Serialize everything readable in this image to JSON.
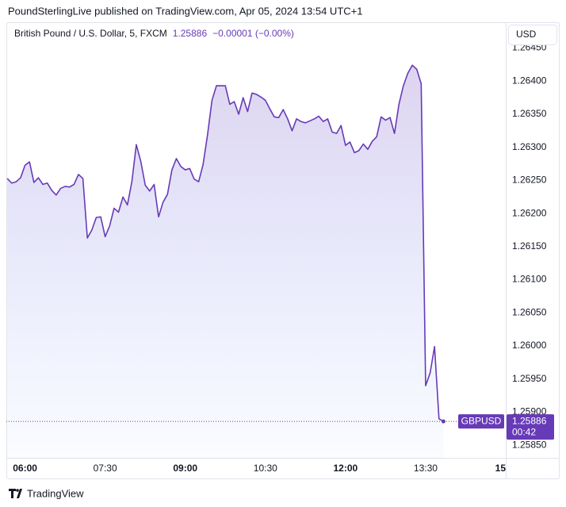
{
  "header": {
    "text": "PoundSterlingLive published on TradingView.com, Apr 05, 2024 13:54 UTC+1"
  },
  "footer": {
    "brand": "TradingView"
  },
  "chart_data": {
    "type": "area",
    "title": "British Pound / U.S. Dollar, 5, FXCM",
    "change": "−0.00001 (−0.00%)",
    "symbol": "GBPUSD",
    "currency": "USD",
    "countdown": "00:42",
    "grid": false,
    "xlim": [
      "05:39",
      "15:00"
    ],
    "ylim": [
      1.25831,
      1.26489
    ],
    "xticks": [
      "06:00",
      "07:30",
      "09:00",
      "10:30",
      "12:00",
      "13:30",
      {
        "value": "15:00",
        "label": "15"
      }
    ],
    "yticks": [
      {
        "value": 1.2645,
        "label": "1.26450"
      },
      {
        "value": 1.264,
        "label": "1.26400"
      },
      {
        "value": 1.2635,
        "label": "1.26350"
      },
      {
        "value": 1.263,
        "label": "1.26300"
      },
      {
        "value": 1.2625,
        "label": "1.26250"
      },
      {
        "value": 1.262,
        "label": "1.26200"
      },
      {
        "value": 1.2615,
        "label": "1.26150"
      },
      {
        "value": 1.261,
        "label": "1.26100"
      },
      {
        "value": 1.2605,
        "label": "1.26050"
      },
      {
        "value": 1.26,
        "label": "1.26000"
      },
      {
        "value": 1.2595,
        "label": "1.25950"
      },
      {
        "value": 1.259,
        "label": "1.25900"
      },
      {
        "value": 1.2585,
        "label": "1.25850"
      }
    ],
    "series": [
      {
        "name": "GBPUSD",
        "color": "#673ab7",
        "x": [
          "05:40",
          "05:45",
          "05:50",
          "05:55",
          "06:00",
          "06:05",
          "06:10",
          "06:15",
          "06:20",
          "06:25",
          "06:30",
          "06:35",
          "06:40",
          "06:45",
          "06:50",
          "06:55",
          "07:00",
          "07:05",
          "07:10",
          "07:15",
          "07:20",
          "07:25",
          "07:30",
          "07:35",
          "07:40",
          "07:45",
          "07:50",
          "07:55",
          "08:00",
          "08:05",
          "08:10",
          "08:15",
          "08:20",
          "08:25",
          "08:30",
          "08:35",
          "08:40",
          "08:45",
          "08:50",
          "08:55",
          "09:00",
          "09:05",
          "09:10",
          "09:15",
          "09:20",
          "09:25",
          "09:30",
          "09:35",
          "09:40",
          "09:45",
          "09:50",
          "09:55",
          "10:00",
          "10:05",
          "10:10",
          "10:15",
          "10:20",
          "10:25",
          "10:30",
          "10:35",
          "10:40",
          "10:45",
          "10:50",
          "10:55",
          "11:00",
          "11:05",
          "11:10",
          "11:15",
          "11:20",
          "11:25",
          "11:30",
          "11:35",
          "11:40",
          "11:45",
          "11:50",
          "11:55",
          "12:00",
          "12:05",
          "12:10",
          "12:15",
          "12:20",
          "12:25",
          "12:30",
          "12:35",
          "12:40",
          "12:45",
          "12:50",
          "12:55",
          "13:00",
          "13:05",
          "13:10",
          "13:15",
          "13:20",
          "13:25",
          "13:30",
          "13:35",
          "13:40",
          "13:45",
          "13:50"
        ],
        "values": [
          1.26253,
          1.26246,
          1.26248,
          1.26254,
          1.26273,
          1.26278,
          1.26247,
          1.26254,
          1.26244,
          1.26246,
          1.26235,
          1.26228,
          1.26238,
          1.26241,
          1.2624,
          1.26244,
          1.26259,
          1.26253,
          1.26163,
          1.26175,
          1.26194,
          1.26195,
          1.26165,
          1.26181,
          1.26208,
          1.26202,
          1.26225,
          1.26213,
          1.26248,
          1.26304,
          1.26279,
          1.26243,
          1.26234,
          1.26244,
          1.26195,
          1.26217,
          1.26229,
          1.26266,
          1.26283,
          1.26271,
          1.26266,
          1.26268,
          1.26252,
          1.26248,
          1.26274,
          1.26319,
          1.26371,
          1.26393,
          1.26393,
          1.26393,
          1.26365,
          1.26369,
          1.2635,
          1.26375,
          1.26354,
          1.26382,
          1.2638,
          1.26376,
          1.26371,
          1.26358,
          1.26346,
          1.26345,
          1.26357,
          1.26343,
          1.26325,
          1.26343,
          1.26339,
          1.26337,
          1.2634,
          1.26343,
          1.26347,
          1.26339,
          1.26343,
          1.26323,
          1.26321,
          1.26333,
          1.26303,
          1.26308,
          1.26292,
          1.26295,
          1.26305,
          1.26297,
          1.26309,
          1.26316,
          1.26346,
          1.26341,
          1.26345,
          1.26321,
          1.26365,
          1.26393,
          1.26412,
          1.26424,
          1.26418,
          1.26396,
          1.2594,
          1.25959,
          1.25999,
          1.2589,
          1.25886
        ]
      }
    ]
  }
}
